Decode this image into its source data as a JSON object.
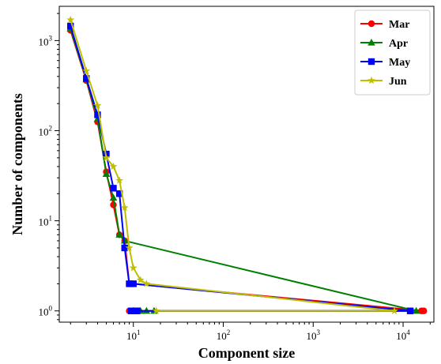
{
  "chart_data": {
    "type": "line",
    "title": "",
    "xlabel": "Component size",
    "ylabel": "Number of components",
    "xscale": "log",
    "yscale": "log",
    "xlim": [
      1.5,
      22000
    ],
    "ylim": [
      0.75,
      2400
    ],
    "x_ticks": [
      {
        "value": 10,
        "base": "10",
        "exp": "1"
      },
      {
        "value": 100,
        "base": "10",
        "exp": "2"
      },
      {
        "value": 1000,
        "base": "10",
        "exp": "3"
      },
      {
        "value": 10000,
        "base": "10",
        "exp": "4"
      }
    ],
    "y_ticks": [
      {
        "value": 1,
        "base": "10",
        "exp": "0"
      },
      {
        "value": 10,
        "base": "10",
        "exp": "1"
      },
      {
        "value": 100,
        "base": "10",
        "exp": "2"
      },
      {
        "value": 1000,
        "base": "10",
        "exp": "3"
      }
    ],
    "grid": false,
    "legend_position": "top-right",
    "series": [
      {
        "name": "Mar",
        "color": "#ff0000",
        "marker": "circle",
        "points": [
          [
            2,
            1300
          ],
          [
            3,
            360
          ],
          [
            4,
            125
          ],
          [
            5,
            35
          ],
          [
            6,
            15
          ],
          [
            7,
            7
          ],
          [
            8,
            6
          ],
          [
            9,
            2
          ],
          [
            10,
            2
          ],
          [
            17000,
            1
          ],
          [
            16000,
            1
          ],
          [
            9,
            1
          ]
        ]
      },
      {
        "name": "Apr",
        "color": "#008000",
        "marker": "triangle",
        "points": [
          [
            2,
            1350
          ],
          [
            3,
            370
          ],
          [
            4,
            135
          ],
          [
            5,
            33
          ],
          [
            6,
            18
          ],
          [
            7,
            7
          ],
          [
            8,
            6
          ],
          [
            14000,
            1
          ],
          [
            12,
            1
          ],
          [
            14,
            1
          ],
          [
            17,
            1
          ],
          [
            10,
            1
          ]
        ]
      },
      {
        "name": "May",
        "color": "#0000ff",
        "marker": "square",
        "points": [
          [
            2,
            1450
          ],
          [
            3,
            380
          ],
          [
            4,
            150
          ],
          [
            5,
            55
          ],
          [
            6,
            23
          ],
          [
            7,
            20
          ],
          [
            8,
            5
          ],
          [
            9,
            2
          ],
          [
            10,
            2
          ],
          [
            12000,
            1
          ],
          [
            11,
            1
          ],
          [
            9.5,
            1
          ],
          [
            10.5,
            1
          ]
        ]
      },
      {
        "name": "Jun",
        "color": "#bfbf00",
        "marker": "star",
        "points": [
          [
            2,
            1700
          ],
          [
            3,
            460
          ],
          [
            4,
            190
          ],
          [
            5,
            50
          ],
          [
            6,
            40
          ],
          [
            7,
            28
          ],
          [
            8,
            14
          ],
          [
            9,
            5
          ],
          [
            10,
            3
          ],
          [
            12,
            2.2
          ],
          [
            14,
            2
          ],
          [
            8000,
            1
          ],
          [
            18,
            1
          ]
        ]
      }
    ]
  }
}
